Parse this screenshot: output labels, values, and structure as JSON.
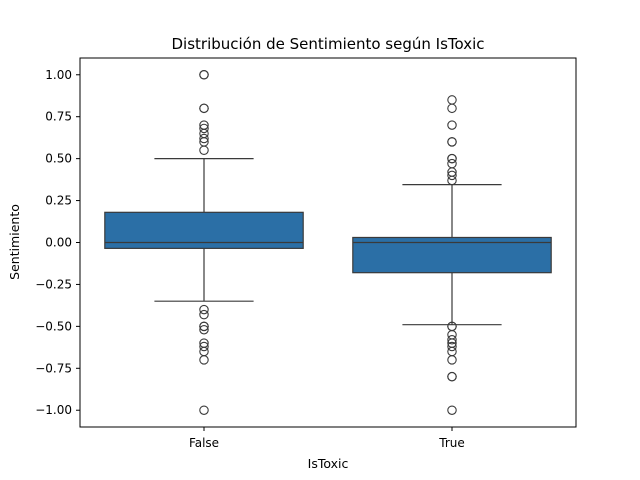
{
  "chart_data": {
    "type": "box",
    "title": "Distribución de Sentimiento según IsToxic",
    "xlabel": "IsToxic",
    "ylabel": "Sentimiento",
    "categories": [
      "False",
      "True"
    ],
    "ylim": [
      -1.1,
      1.1
    ],
    "yticks": [
      1.0,
      0.75,
      0.5,
      0.25,
      0.0,
      -0.25,
      -0.5,
      -0.75,
      -1.0
    ],
    "ytick_labels": [
      "1.00",
      "0.75",
      "0.50",
      "0.25",
      "0.00",
      "−0.25",
      "−0.50",
      "−0.75",
      "−1.00"
    ],
    "grid": false,
    "box_color": "#2b6fa6",
    "line_color": "#3a3a3a",
    "boxes": [
      {
        "category": "False",
        "whisker_low": -0.35,
        "q1": -0.035,
        "median": 0.0,
        "q3": 0.18,
        "whisker_high": 0.5,
        "outliers": [
          1.0,
          1.0,
          0.8,
          0.8,
          0.7,
          0.68,
          0.65,
          0.62,
          0.6,
          0.55,
          -0.4,
          -0.43,
          -0.5,
          -0.5,
          -0.52,
          -0.6,
          -0.62,
          -0.65,
          -0.7,
          -1.0
        ]
      },
      {
        "category": "True",
        "whisker_low": -0.49,
        "q1": -0.18,
        "median": 0.0,
        "q3": 0.03,
        "whisker_high": 0.345,
        "outliers": [
          0.85,
          0.8,
          0.7,
          0.6,
          0.6,
          0.5,
          0.5,
          0.47,
          0.42,
          0.4,
          0.37,
          -0.5,
          -0.5,
          -0.55,
          -0.58,
          -0.6,
          -0.62,
          -0.65,
          -0.7,
          -0.8,
          -0.8,
          -1.0
        ]
      }
    ]
  }
}
